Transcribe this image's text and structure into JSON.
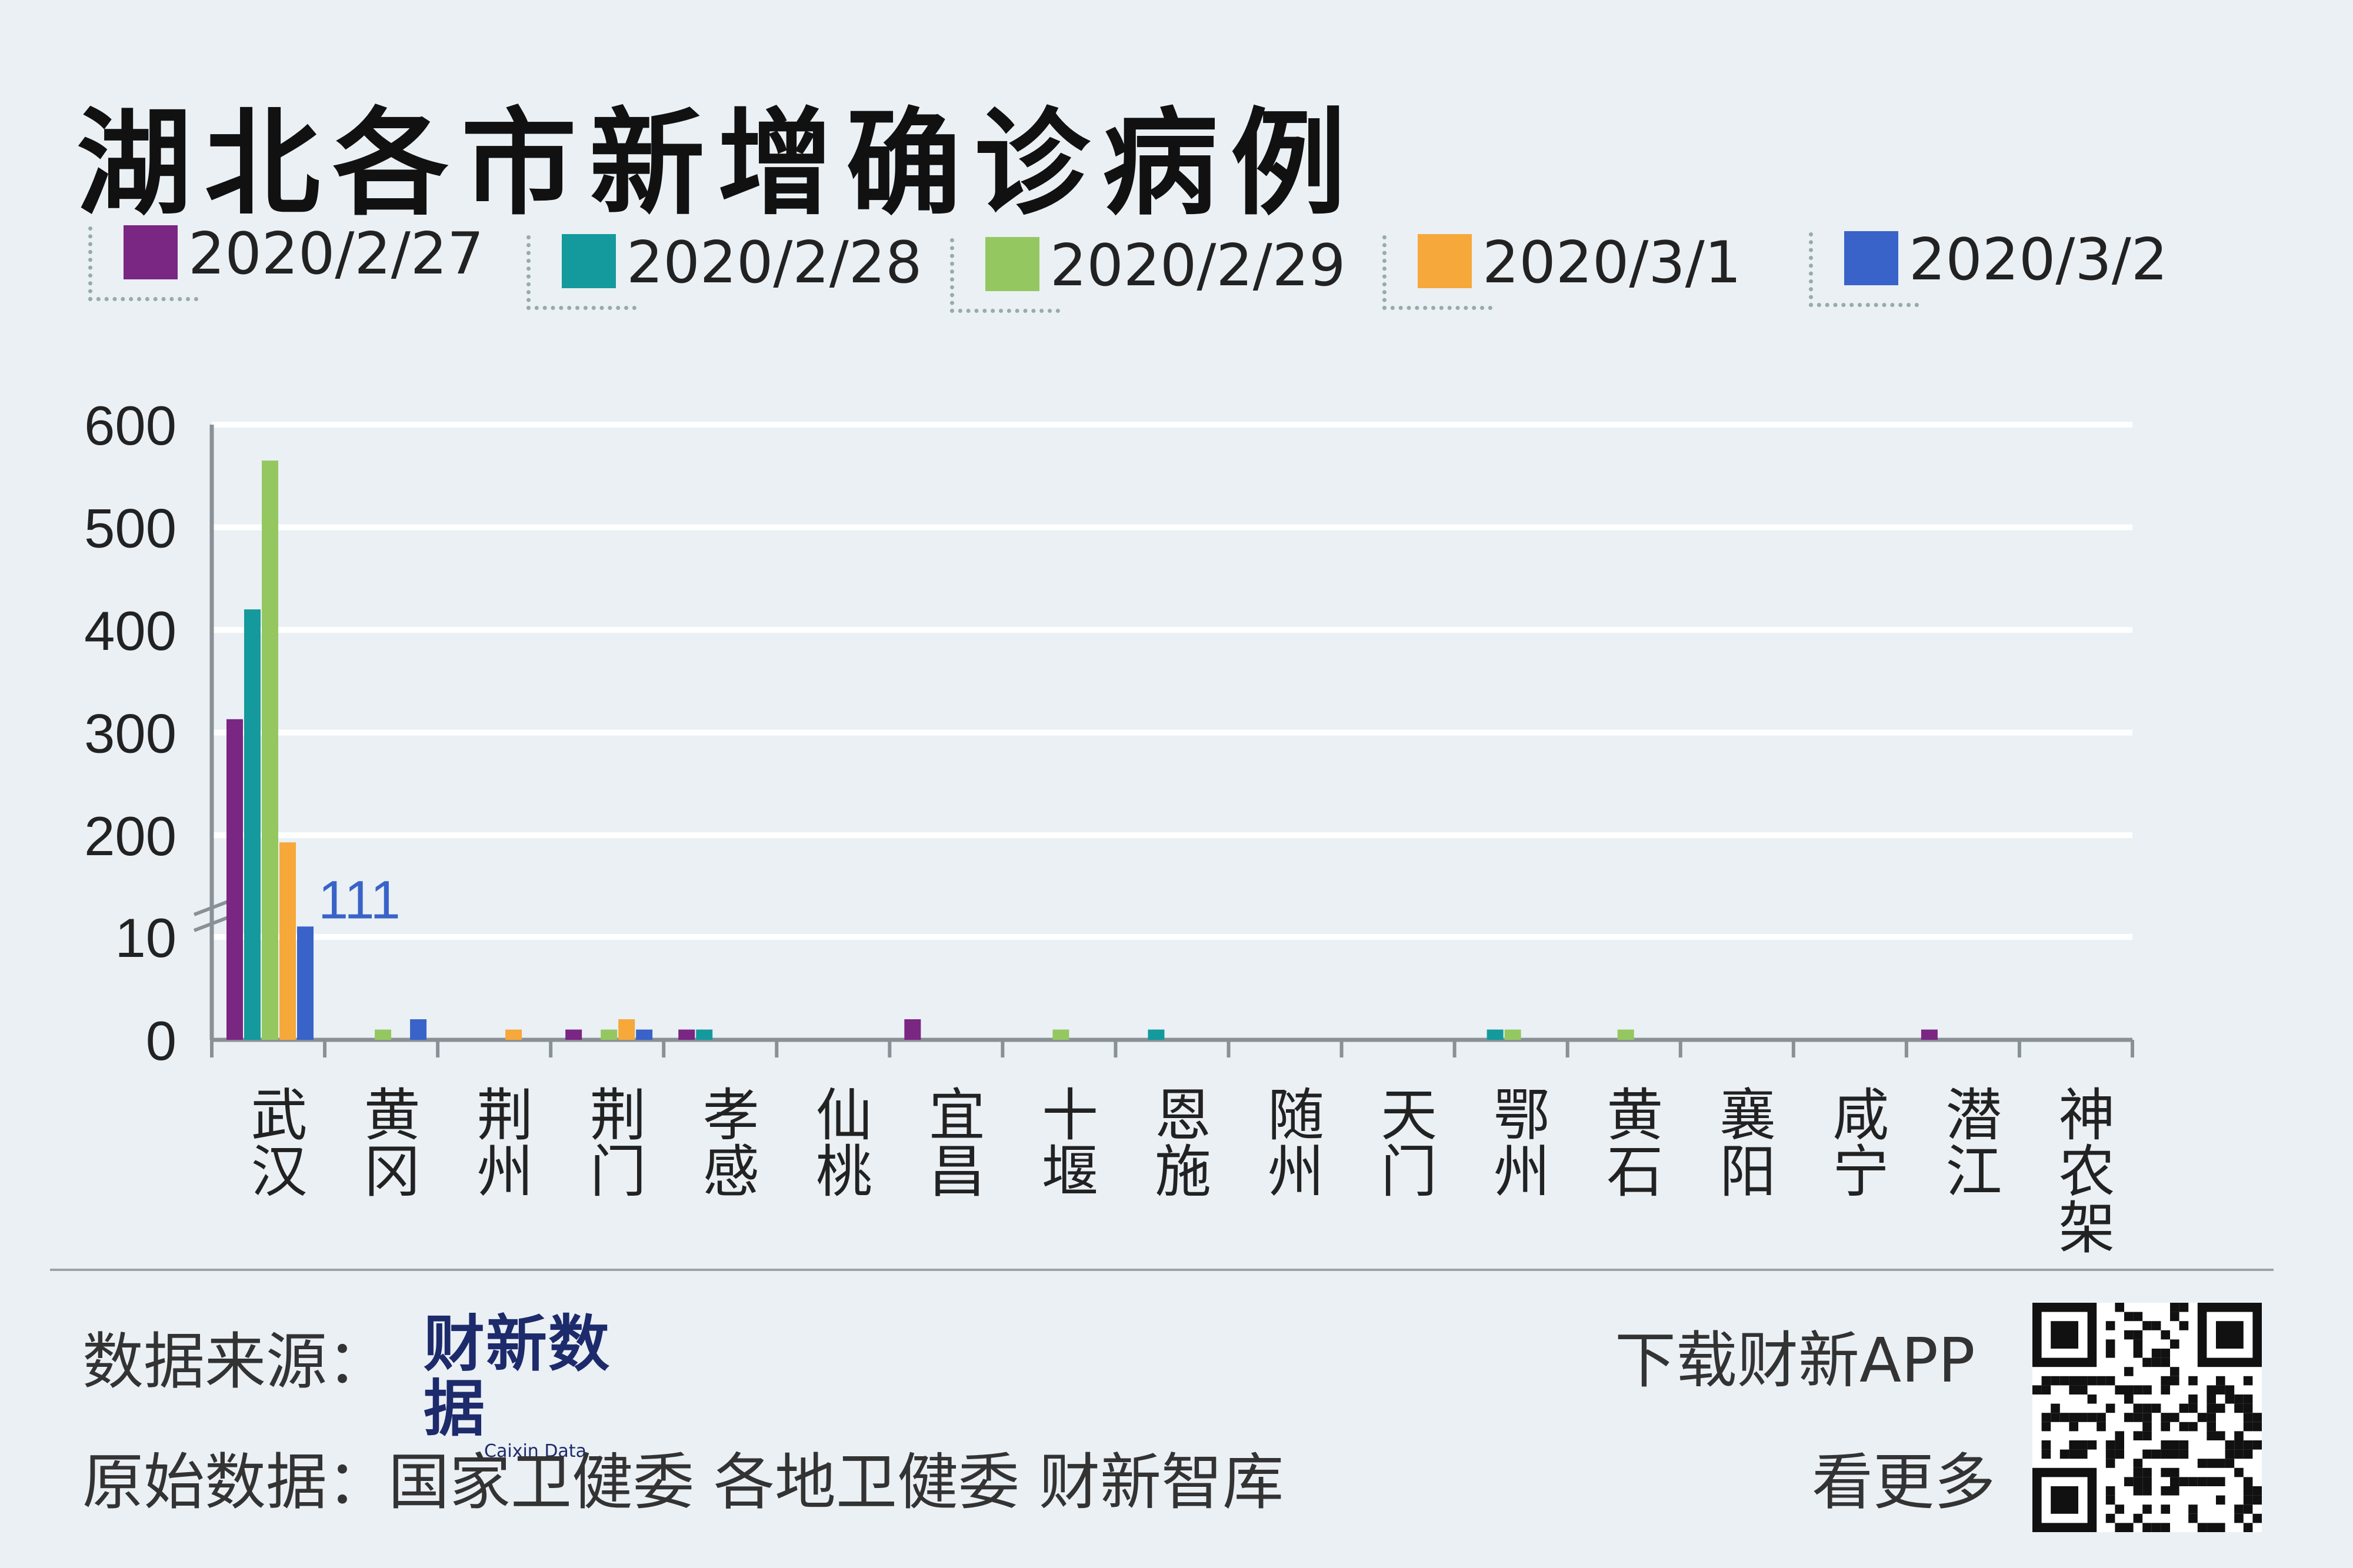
{
  "title": "湖北各市新增确诊病例",
  "legend": [
    {
      "label": "2020/2/27",
      "color": "#7a2683"
    },
    {
      "label": "2020/2/28",
      "color": "#149a9c"
    },
    {
      "label": "2020/2/29",
      "color": "#95c761"
    },
    {
      "label": "2020/3/1",
      "color": "#f6a83b"
    },
    {
      "label": "2020/3/2",
      "color": "#3963c8"
    }
  ],
  "chart_data": {
    "type": "bar",
    "categories": [
      "武汉",
      "黄冈",
      "荆州",
      "荆门",
      "孝感",
      "仙桃",
      "宜昌",
      "十堰",
      "恩施",
      "随州",
      "天门",
      "鄂州",
      "黄石",
      "襄阳",
      "咸宁",
      "潜江",
      "神农架"
    ],
    "series": [
      {
        "name": "2020/2/27",
        "color": "#7a2683",
        "values": [
          313,
          0,
          0,
          1,
          1,
          0,
          2,
          0,
          0,
          0,
          0,
          0,
          0,
          0,
          0,
          1,
          0
        ]
      },
      {
        "name": "2020/2/28",
        "color": "#149a9c",
        "values": [
          420,
          0,
          0,
          0,
          1,
          0,
          0,
          0,
          1,
          0,
          0,
          1,
          0,
          0,
          0,
          0,
          0
        ]
      },
      {
        "name": "2020/2/29",
        "color": "#95c761",
        "values": [
          565,
          1,
          0,
          1,
          0,
          0,
          0,
          1,
          0,
          0,
          0,
          1,
          1,
          0,
          0,
          0,
          0
        ]
      },
      {
        "name": "2020/3/1",
        "color": "#f6a83b",
        "values": [
          193,
          0,
          1,
          2,
          0,
          0,
          0,
          0,
          0,
          0,
          0,
          0,
          0,
          0,
          0,
          0,
          0
        ]
      },
      {
        "name": "2020/3/2",
        "color": "#3963c8",
        "values": [
          111,
          2,
          0,
          1,
          0,
          0,
          0,
          0,
          0,
          0,
          0,
          0,
          0,
          0,
          0,
          0,
          0
        ]
      }
    ],
    "y_ticks": [
      "0",
      "10",
      "200",
      "300",
      "400",
      "500",
      "600"
    ],
    "y_break": "10 → 200 (broken axis)",
    "annotations": [
      {
        "category": "武汉",
        "series": "2020/3/2",
        "text": "111"
      }
    ],
    "grid": true,
    "legend_position": "top"
  },
  "footer": {
    "source_label": "数据来源：",
    "logo_text": "财新数据",
    "logo_sub": "Caixin Data",
    "origin": "原始数据：国家卫健委 各地卫健委 财新智库",
    "download": "下载财新APP",
    "more": "看更多"
  }
}
